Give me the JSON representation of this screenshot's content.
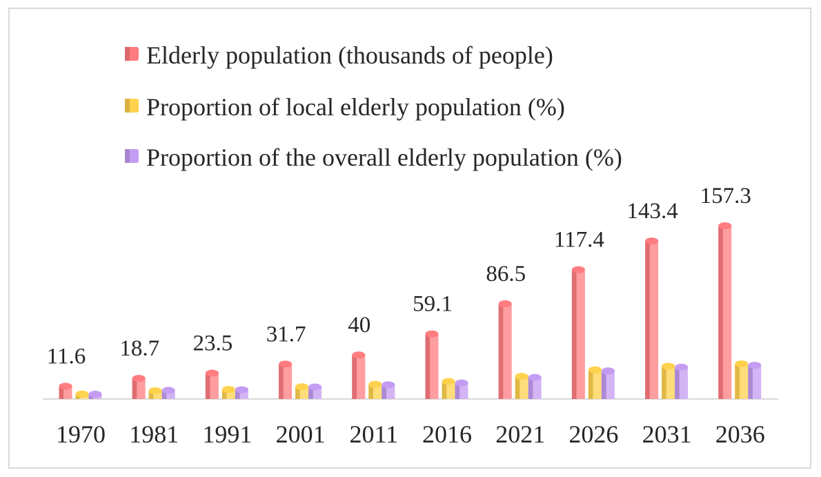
{
  "chart_data": {
    "type": "bar",
    "title": "",
    "xlabel": "",
    "ylabel": "",
    "categories": [
      "1970",
      "1981",
      "1991",
      "2001",
      "2011",
      "2016",
      "2021",
      "2026",
      "2031",
      "2036"
    ],
    "series": [
      {
        "name": "Elderly population (thousands of people)",
        "color": "#ff7c80",
        "values": [
          11.6,
          18.7,
          23.5,
          31.7,
          40,
          59.1,
          86.5,
          117.4,
          143.4,
          157.3
        ],
        "labels": [
          "11.6",
          "18.7",
          "23.5",
          "31.7",
          "40",
          "59.1",
          "86.5",
          "117.4",
          "143.4",
          "157.3"
        ]
      },
      {
        "name": "Proportion of local elderly population (%)",
        "color": "#ffd24d",
        "values": [
          4.5,
          7.5,
          8.7,
          11.1,
          13.3,
          15.9,
          20.5,
          26.5,
          29.8,
          31.9
        ]
      },
      {
        "name": "Proportion of the overall elderly population (%)",
        "color": "#c49cf2",
        "values": [
          4.4,
          7.8,
          8.4,
          10.9,
          12.9,
          14.6,
          19.6,
          25.5,
          28.9,
          30.6
        ]
      }
    ],
    "ylim": [
      0,
      170
    ],
    "grid": false,
    "legend_position": "top"
  }
}
